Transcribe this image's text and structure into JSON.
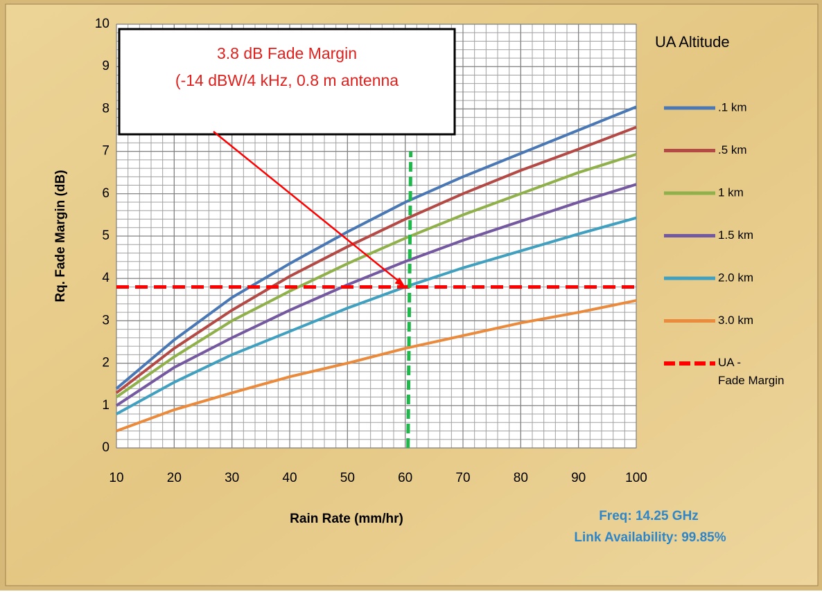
{
  "chart_data": {
    "type": "line",
    "x_label": "Rain Rate (mm/hr)",
    "y_label": "Rq. Fade Margin (dB)",
    "legend_title": "UA Altitude",
    "legend": "right",
    "x": [
      10,
      20,
      30,
      40,
      50,
      60,
      70,
      80,
      90,
      100
    ],
    "xlim": [
      10,
      100
    ],
    "xticks": [
      10,
      20,
      30,
      40,
      50,
      60,
      70,
      80,
      90,
      100
    ],
    "ylim": [
      0,
      10
    ],
    "yticks": [
      0,
      1,
      2,
      3,
      4,
      5,
      6,
      7,
      8,
      9,
      10
    ],
    "grid": true,
    "minor_grid": {
      "x": 2,
      "y": 0.2
    },
    "series": [
      {
        "name": ".1 km",
        "color": "#4a78b4",
        "values": [
          1.4,
          2.55,
          3.55,
          4.35,
          5.1,
          5.8,
          6.4,
          6.95,
          7.5,
          8.05
        ]
      },
      {
        "name": ".5 km",
        "color": "#b34a45",
        "values": [
          1.3,
          2.35,
          3.25,
          4.05,
          4.75,
          5.4,
          6.0,
          6.55,
          7.05,
          7.57
        ]
      },
      {
        "name": "1 km",
        "color": "#8fb04a",
        "values": [
          1.2,
          2.15,
          3.0,
          3.7,
          4.35,
          4.95,
          5.5,
          6.0,
          6.5,
          6.93
        ]
      },
      {
        "name": "1.5 km",
        "color": "#7559a0",
        "values": [
          1.0,
          1.9,
          2.6,
          3.25,
          3.85,
          4.4,
          4.9,
          5.35,
          5.8,
          6.22
        ]
      },
      {
        "name": "2.0 km",
        "color": "#41a0bf",
        "values": [
          0.8,
          1.55,
          2.2,
          2.75,
          3.3,
          3.8,
          4.25,
          4.65,
          5.05,
          5.43
        ]
      },
      {
        "name": "3.0 km",
        "color": "#ea8a3c",
        "values": [
          0.4,
          0.9,
          1.3,
          1.68,
          2.0,
          2.35,
          2.65,
          2.95,
          3.2,
          3.48
        ]
      },
      {
        "name": "UA - Fade Margin",
        "color": "#ff0000",
        "dashed": true,
        "values": [
          3.8,
          3.8,
          3.8,
          3.8,
          3.8,
          3.8,
          3.8,
          3.8,
          3.8,
          3.8
        ]
      }
    ],
    "vline": {
      "x": 60,
      "y": [
        0,
        7
      ],
      "color": "#1fb84a"
    },
    "annotation": {
      "lines": [
        "3.8 dB Fade Margin",
        "(-14 dBW/4 kHz, 0.8 m antenna"
      ],
      "target": [
        60,
        3.8
      ]
    },
    "notes": [
      "Freq: 14.25 GHz",
      "Link Availability:  99.85%"
    ]
  }
}
